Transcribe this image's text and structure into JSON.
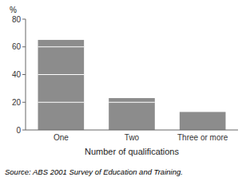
{
  "chart_data": {
    "type": "bar",
    "categories": [
      "One",
      "Two",
      "Three or more"
    ],
    "values": [
      65,
      23,
      13
    ],
    "color": "#8c8c8c",
    "divider_lines": [
      [
        20,
        40,
        60
      ],
      [
        20
      ],
      []
    ],
    "ylabel": "%",
    "xlabel": "Number of qualifications",
    "ylim": [
      0,
      80
    ],
    "yticks": [
      0,
      20,
      40,
      60,
      80
    ],
    "source": "Source: ABS 2001 Survey of Education and Training."
  }
}
